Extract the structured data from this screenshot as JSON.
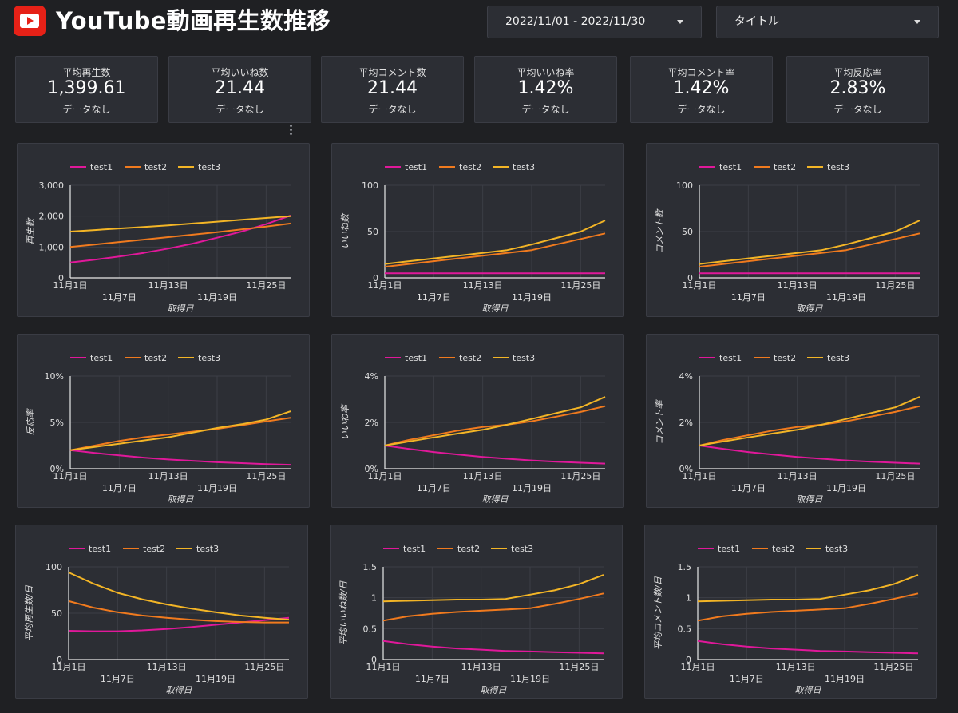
{
  "header": {
    "title": "YouTube動画再生数推移",
    "date_range": "2022/11/01 - 2022/11/30",
    "filter_title": "タイトル"
  },
  "kpis": [
    {
      "label": "平均再生数",
      "value": "1,399.61",
      "sub": "データなし"
    },
    {
      "label": "平均いいね数",
      "value": "21.44",
      "sub": "データなし"
    },
    {
      "label": "平均コメント数",
      "value": "21.44",
      "sub": "データなし"
    },
    {
      "label": "平均いいね率",
      "value": "1.42%",
      "sub": "データなし"
    },
    {
      "label": "平均コメント率",
      "value": "1.42%",
      "sub": "データなし"
    },
    {
      "label": "平均反応率",
      "value": "2.83%",
      "sub": "データなし"
    }
  ],
  "colors": {
    "test1": "#e0189a",
    "test2": "#f07a1e",
    "test3": "#f3b526",
    "background": "#1f2023",
    "card": "#2c2e34"
  },
  "chart_data": [
    {
      "type": "line",
      "ylabel": "再生数",
      "xlabel": "取得日",
      "x": [
        "11月1日",
        "11月4日",
        "11月7日",
        "11月10日",
        "11月13日",
        "11月16日",
        "11月19日",
        "11月22日",
        "11月25日",
        "11月28日"
      ],
      "xticks": [
        "11月1日",
        "11月7日",
        "11月13日",
        "11月19日",
        "11月25日"
      ],
      "yticks": [
        "0",
        "1,000",
        "2,000",
        "3,000"
      ],
      "ylim": [
        0,
        3000
      ],
      "series": [
        {
          "name": "test1",
          "values": [
            500,
            590,
            690,
            810,
            950,
            1110,
            1300,
            1500,
            1740,
            2020
          ]
        },
        {
          "name": "test2",
          "values": [
            1000,
            1080,
            1160,
            1240,
            1320,
            1400,
            1480,
            1570,
            1660,
            1760
          ]
        },
        {
          "name": "test3",
          "values": [
            1500,
            1550,
            1600,
            1650,
            1700,
            1760,
            1820,
            1880,
            1940,
            2000
          ]
        }
      ]
    },
    {
      "type": "line",
      "ylabel": "いいね数",
      "xlabel": "取得日",
      "x": [
        "11月1日",
        "11月4日",
        "11月7日",
        "11月10日",
        "11月13日",
        "11月16日",
        "11月19日",
        "11月22日",
        "11月25日",
        "11月28日"
      ],
      "xticks": [
        "11月1日",
        "11月7日",
        "11月13日",
        "11月19日",
        "11月25日"
      ],
      "yticks": [
        "0",
        "50",
        "100"
      ],
      "ylim": [
        0,
        100
      ],
      "series": [
        {
          "name": "test1",
          "values": [
            5,
            5,
            5,
            5,
            5,
            5,
            5,
            5,
            5,
            5
          ]
        },
        {
          "name": "test2",
          "values": [
            12,
            15,
            18,
            21,
            24,
            27,
            30,
            36,
            42,
            48
          ]
        },
        {
          "name": "test3",
          "values": [
            15,
            18,
            21,
            24,
            27,
            30,
            36,
            43,
            50,
            62
          ]
        }
      ]
    },
    {
      "type": "line",
      "ylabel": "コメント数",
      "xlabel": "取得日",
      "x": [
        "11月1日",
        "11月4日",
        "11月7日",
        "11月10日",
        "11月13日",
        "11月16日",
        "11月19日",
        "11月22日",
        "11月25日",
        "11月28日"
      ],
      "xticks": [
        "11月1日",
        "11月7日",
        "11月13日",
        "11月19日",
        "11月25日"
      ],
      "yticks": [
        "0",
        "50",
        "100"
      ],
      "ylim": [
        0,
        100
      ],
      "series": [
        {
          "name": "test1",
          "values": [
            5,
            5,
            5,
            5,
            5,
            5,
            5,
            5,
            5,
            5
          ]
        },
        {
          "name": "test2",
          "values": [
            12,
            15,
            18,
            21,
            24,
            27,
            30,
            36,
            42,
            48
          ]
        },
        {
          "name": "test3",
          "values": [
            15,
            18,
            21,
            24,
            27,
            30,
            36,
            43,
            50,
            62
          ]
        }
      ]
    },
    {
      "type": "line",
      "ylabel": "反応率",
      "xlabel": "取得日",
      "x": [
        "11月1日",
        "11月4日",
        "11月7日",
        "11月10日",
        "11月13日",
        "11月16日",
        "11月19日",
        "11月22日",
        "11月25日",
        "11月28日"
      ],
      "xticks": [
        "11月1日",
        "11月7日",
        "11月13日",
        "11月19日",
        "11月25日"
      ],
      "yticks": [
        "0%",
        "5%",
        "10%"
      ],
      "ylim": [
        0,
        10
      ],
      "series": [
        {
          "name": "test1",
          "values": [
            2.0,
            1.7,
            1.45,
            1.2,
            1.0,
            0.85,
            0.7,
            0.6,
            0.5,
            0.42
          ]
        },
        {
          "name": "test2",
          "values": [
            2.0,
            2.5,
            3.0,
            3.4,
            3.7,
            4.0,
            4.3,
            4.7,
            5.1,
            5.5
          ]
        },
        {
          "name": "test3",
          "values": [
            2.0,
            2.35,
            2.7,
            3.05,
            3.4,
            3.9,
            4.4,
            4.8,
            5.3,
            6.2
          ]
        }
      ]
    },
    {
      "type": "line",
      "ylabel": "いいね率",
      "xlabel": "取得日",
      "x": [
        "11月1日",
        "11月4日",
        "11月7日",
        "11月10日",
        "11月13日",
        "11月16日",
        "11月19日",
        "11月22日",
        "11月25日",
        "11月28日"
      ],
      "xticks": [
        "11月1日",
        "11月7日",
        "11月13日",
        "11月19日",
        "11月25日"
      ],
      "yticks": [
        "0%",
        "2%",
        "4%"
      ],
      "ylim": [
        0,
        4
      ],
      "series": [
        {
          "name": "test1",
          "values": [
            1.0,
            0.85,
            0.72,
            0.61,
            0.51,
            0.43,
            0.36,
            0.3,
            0.26,
            0.22
          ]
        },
        {
          "name": "test2",
          "values": [
            1.0,
            1.25,
            1.45,
            1.65,
            1.8,
            1.9,
            2.05,
            2.25,
            2.45,
            2.7
          ]
        },
        {
          "name": "test3",
          "values": [
            1.0,
            1.18,
            1.35,
            1.52,
            1.68,
            1.9,
            2.15,
            2.4,
            2.65,
            3.1
          ]
        }
      ]
    },
    {
      "type": "line",
      "ylabel": "コメント率",
      "xlabel": "取得日",
      "x": [
        "11月1日",
        "11月4日",
        "11月7日",
        "11月10日",
        "11月13日",
        "11月16日",
        "11月19日",
        "11月22日",
        "11月25日",
        "11月28日"
      ],
      "xticks": [
        "11月1日",
        "11月7日",
        "11月13日",
        "11月19日",
        "11月25日"
      ],
      "yticks": [
        "0%",
        "2%",
        "4%"
      ],
      "ylim": [
        0,
        4
      ],
      "series": [
        {
          "name": "test1",
          "values": [
            1.0,
            0.85,
            0.72,
            0.61,
            0.51,
            0.43,
            0.36,
            0.3,
            0.26,
            0.22
          ]
        },
        {
          "name": "test2",
          "values": [
            1.0,
            1.25,
            1.45,
            1.65,
            1.8,
            1.9,
            2.05,
            2.25,
            2.45,
            2.7
          ]
        },
        {
          "name": "test3",
          "values": [
            1.0,
            1.18,
            1.35,
            1.52,
            1.68,
            1.9,
            2.15,
            2.4,
            2.65,
            3.1
          ]
        }
      ]
    },
    {
      "type": "line",
      "ylabel": "平均再生数/日",
      "xlabel": "取得日",
      "x": [
        "11月1日",
        "11月4日",
        "11月7日",
        "11月10日",
        "11月13日",
        "11月16日",
        "11月19日",
        "11月22日",
        "11月25日",
        "11月28日"
      ],
      "xticks": [
        "11月1日",
        "11月7日",
        "11月13日",
        "11月19日",
        "11月25日"
      ],
      "yticks": [
        "0",
        "50",
        "100"
      ],
      "ylim": [
        0,
        100
      ],
      "series": [
        {
          "name": "test1",
          "values": [
            31,
            30.5,
            30.5,
            31.5,
            33,
            35,
            37.5,
            40,
            42.5,
            45
          ]
        },
        {
          "name": "test2",
          "values": [
            63,
            56,
            51,
            47.5,
            45,
            43,
            41.5,
            40.5,
            40,
            40
          ]
        },
        {
          "name": "test3",
          "values": [
            94,
            82,
            72,
            65,
            59.5,
            55,
            51,
            47.5,
            45,
            43
          ]
        }
      ]
    },
    {
      "type": "line",
      "ylabel": "平均いいね数/日",
      "xlabel": "取得日",
      "x": [
        "11月1日",
        "11月4日",
        "11月7日",
        "11月10日",
        "11月13日",
        "11月16日",
        "11月19日",
        "11月22日",
        "11月25日",
        "11月28日"
      ],
      "xticks": [
        "11月1日",
        "11月7日",
        "11月13日",
        "11月19日",
        "11月25日"
      ],
      "yticks": [
        "0",
        "0.5",
        "1",
        "1.5"
      ],
      "ylim": [
        0,
        1.5
      ],
      "series": [
        {
          "name": "test1",
          "values": [
            0.3,
            0.25,
            0.21,
            0.18,
            0.16,
            0.14,
            0.13,
            0.12,
            0.11,
            0.1
          ]
        },
        {
          "name": "test2",
          "values": [
            0.63,
            0.7,
            0.74,
            0.77,
            0.79,
            0.81,
            0.83,
            0.9,
            0.98,
            1.07
          ]
        },
        {
          "name": "test3",
          "values": [
            0.94,
            0.95,
            0.96,
            0.97,
            0.97,
            0.98,
            1.05,
            1.12,
            1.22,
            1.37
          ]
        }
      ]
    },
    {
      "type": "line",
      "ylabel": "平均コメント数/日",
      "xlabel": "取得日",
      "x": [
        "11月1日",
        "11月4日",
        "11月7日",
        "11月10日",
        "11月13日",
        "11月16日",
        "11月19日",
        "11月22日",
        "11月25日",
        "11月28日"
      ],
      "xticks": [
        "11月1日",
        "11月7日",
        "11月13日",
        "11月19日",
        "11月25日"
      ],
      "yticks": [
        "0",
        "0.5",
        "1",
        "1.5"
      ],
      "ylim": [
        0,
        1.5
      ],
      "series": [
        {
          "name": "test1",
          "values": [
            0.3,
            0.25,
            0.21,
            0.18,
            0.16,
            0.14,
            0.13,
            0.12,
            0.11,
            0.1
          ]
        },
        {
          "name": "test2",
          "values": [
            0.63,
            0.7,
            0.74,
            0.77,
            0.79,
            0.81,
            0.83,
            0.9,
            0.98,
            1.07
          ]
        },
        {
          "name": "test3",
          "values": [
            0.94,
            0.95,
            0.96,
            0.97,
            0.97,
            0.98,
            1.05,
            1.12,
            1.22,
            1.37
          ]
        }
      ]
    }
  ]
}
